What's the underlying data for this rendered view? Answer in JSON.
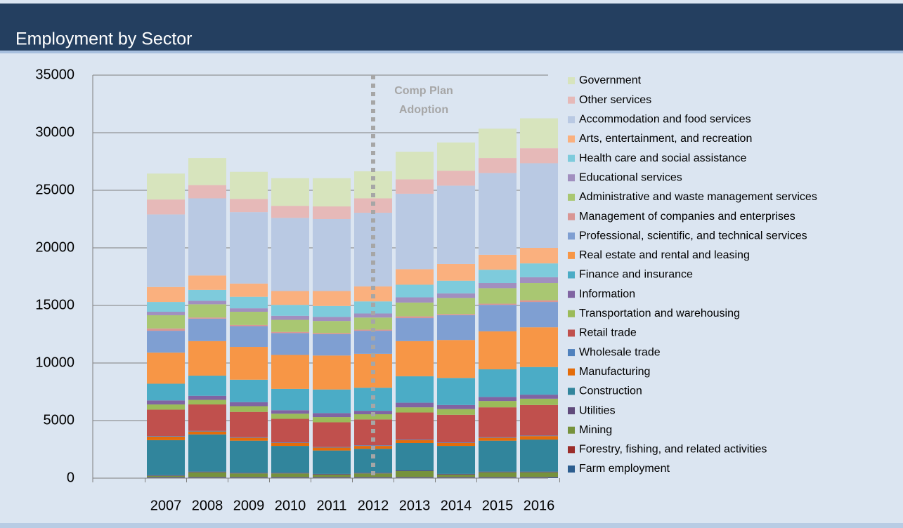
{
  "chart_data": {
    "type": "stacked_bar",
    "title": "Employment by Sector",
    "categories": [
      "2007",
      "2008",
      "2009",
      "2010",
      "2011",
      "2012",
      "2013",
      "2014",
      "2015",
      "2016"
    ],
    "ylim": [
      0,
      35000
    ],
    "yticks": [
      0,
      5000,
      10000,
      15000,
      20000,
      25000,
      30000,
      35000
    ],
    "grid": true,
    "legend": "right",
    "annotation": {
      "text": [
        "Comp Plan",
        "Adoption"
      ],
      "x": "2012"
    },
    "series": [
      {
        "name": "Farm employment",
        "color": "#2c5d8f",
        "values": [
          80,
          80,
          80,
          80,
          80,
          80,
          80,
          80,
          80,
          80
        ]
      },
      {
        "name": "Forestry, fishing, and related activities",
        "color": "#9b2d2a",
        "values": [
          30,
          30,
          30,
          30,
          30,
          30,
          30,
          30,
          30,
          30
        ]
      },
      {
        "name": "Mining",
        "color": "#76923c",
        "values": [
          90,
          400,
          300,
          300,
          200,
          300,
          500,
          200,
          400,
          400
        ]
      },
      {
        "name": "Utilities",
        "color": "#604a7b",
        "values": [
          50,
          60,
          60,
          60,
          60,
          60,
          60,
          60,
          60,
          60
        ]
      },
      {
        "name": "Construction",
        "color": "#31859c",
        "values": [
          3050,
          3230,
          2780,
          2330,
          2030,
          2080,
          2380,
          2430,
          2680,
          2780
        ]
      },
      {
        "name": "Manufacturing",
        "color": "#e46c0a",
        "values": [
          300,
          250,
          250,
          250,
          250,
          250,
          250,
          250,
          250,
          300
        ]
      },
      {
        "name": "Wholesale trade",
        "color": "#4f81bd",
        "values": [
          50,
          50,
          50,
          50,
          50,
          50,
          50,
          50,
          50,
          50
        ]
      },
      {
        "name": "Retail trade",
        "color": "#c0504d",
        "values": [
          2300,
          2300,
          2200,
          2050,
          2150,
          2250,
          2350,
          2400,
          2600,
          2650
        ]
      },
      {
        "name": "Transportation and warehousing",
        "color": "#9bbb59",
        "values": [
          450,
          400,
          500,
          450,
          450,
          450,
          450,
          500,
          550,
          550
        ]
      },
      {
        "name": "Information",
        "color": "#8064a2",
        "values": [
          350,
          350,
          350,
          300,
          350,
          300,
          400,
          350,
          350,
          350
        ]
      },
      {
        "name": "Finance and insurance",
        "color": "#4bacc6",
        "values": [
          1450,
          1750,
          1950,
          1850,
          2050,
          2000,
          2300,
          2350,
          2400,
          2400
        ]
      },
      {
        "name": "Real estate and rental and leasing",
        "color": "#f79646",
        "values": [
          2700,
          3000,
          2850,
          2950,
          2950,
          2950,
          3050,
          3300,
          3300,
          3450
        ]
      },
      {
        "name": "Professional, scientific, and technical services",
        "color": "#7f9fd2",
        "values": [
          1900,
          1950,
          1800,
          1900,
          1850,
          2000,
          2000,
          2150,
          2300,
          2200
        ]
      },
      {
        "name": "Management of companies and enterprises",
        "color": "#d99694",
        "values": [
          200,
          100,
          100,
          100,
          100,
          100,
          150,
          100,
          100,
          150
        ]
      },
      {
        "name": "Administrative and waste management services",
        "color": "#a9c772",
        "values": [
          1150,
          1150,
          1150,
          1050,
          1050,
          1050,
          1200,
          1400,
          1350,
          1500
        ]
      },
      {
        "name": "Educational services",
        "color": "#a18fbf",
        "values": [
          300,
          300,
          300,
          350,
          350,
          350,
          450,
          400,
          450,
          500
        ]
      },
      {
        "name": "Health care and social assistance",
        "color": "#7ecbdc",
        "values": [
          850,
          950,
          1000,
          950,
          950,
          1050,
          1100,
          1100,
          1150,
          1200
        ]
      },
      {
        "name": "Arts, entertainment, and recreation",
        "color": "#fab07e",
        "values": [
          1300,
          1250,
          1150,
          1200,
          1300,
          1300,
          1350,
          1450,
          1300,
          1350
        ]
      },
      {
        "name": "Accommodation and food services",
        "color": "#b9c9e3",
        "values": [
          6300,
          6700,
          6200,
          6350,
          6250,
          6400,
          6550,
          6800,
          7100,
          7350
        ]
      },
      {
        "name": "Other services",
        "color": "#e6b9b8",
        "values": [
          1300,
          1150,
          1150,
          1050,
          1100,
          1250,
          1250,
          1300,
          1300,
          1300
        ]
      },
      {
        "name": "Government",
        "color": "#d7e4bd",
        "values": [
          2250,
          2350,
          2350,
          2400,
          2450,
          2350,
          2400,
          2450,
          2550,
          2600
        ]
      }
    ]
  }
}
